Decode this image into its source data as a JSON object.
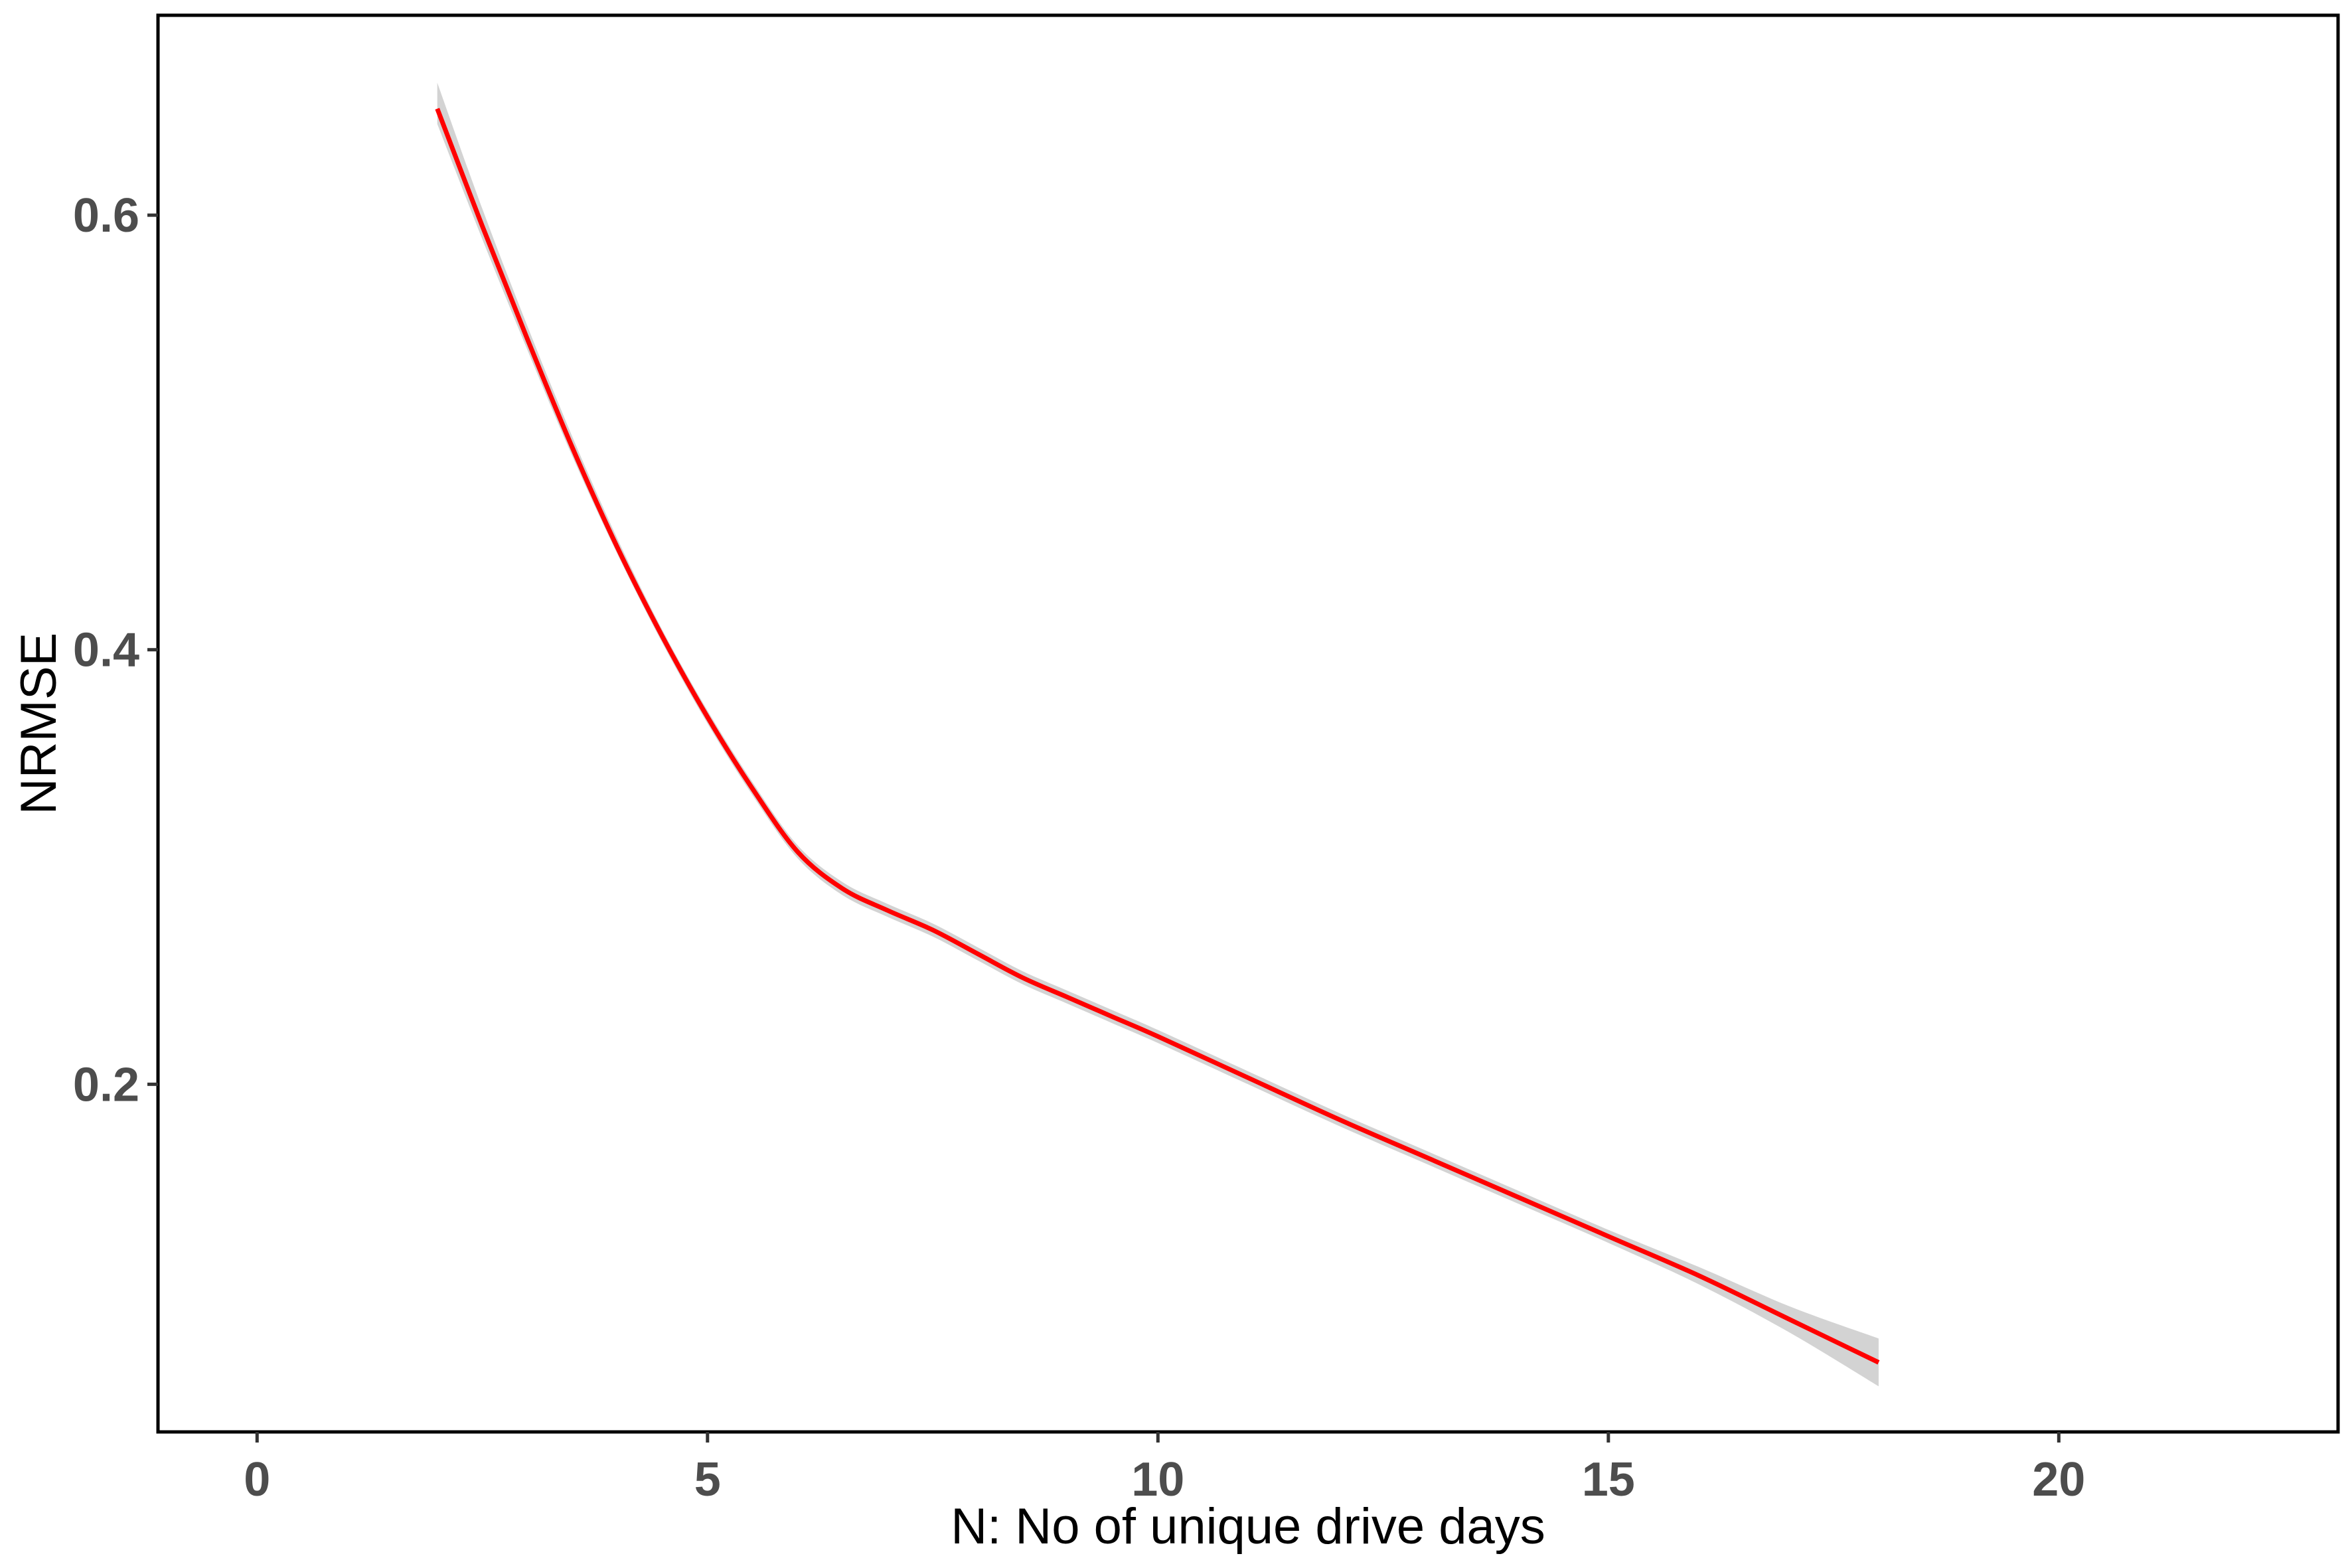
{
  "chart_data": {
    "type": "line",
    "title": "",
    "xlabel": "N: No of unique drive days",
    "ylabel": "NRMSE",
    "xlim": [
      -1.1,
      23.1
    ],
    "ylim": [
      0.04,
      0.692
    ],
    "xticks": [
      0,
      5,
      10,
      15,
      20
    ],
    "xtick_labels": [
      "0",
      "5",
      "10",
      "15",
      "20"
    ],
    "yticks": [
      0.2,
      0.4,
      0.6
    ],
    "ytick_labels": [
      "0.2",
      "0.4",
      "0.6"
    ],
    "grid": false,
    "legend": "none",
    "series": [
      {
        "color": "#ff0000",
        "band_color": "#d3d3d3",
        "x": [
          2,
          2.5,
          3,
          3.5,
          4,
          4.5,
          5,
          5.5,
          6,
          6.5,
          7,
          7.5,
          8,
          8.5,
          9,
          9.5,
          10,
          11,
          12,
          13,
          14,
          15,
          16,
          17,
          18
        ],
        "y": [
          0.649,
          0.595,
          0.543,
          0.493,
          0.447,
          0.406,
          0.369,
          0.336,
          0.307,
          0.29,
          0.28,
          0.271,
          0.26,
          0.249,
          0.24,
          0.231,
          0.222,
          0.203,
          0.184,
          0.166,
          0.148,
          0.13,
          0.112,
          0.092,
          0.072
        ],
        "y_lower": [
          0.642,
          0.589,
          0.538,
          0.489,
          0.444,
          0.403,
          0.366,
          0.333,
          0.304,
          0.287,
          0.277,
          0.268,
          0.257,
          0.246,
          0.237,
          0.228,
          0.219,
          0.2,
          0.181,
          0.163,
          0.145,
          0.127,
          0.108,
          0.086,
          0.061
        ],
        "y_upper": [
          0.661,
          0.603,
          0.549,
          0.498,
          0.451,
          0.409,
          0.372,
          0.339,
          0.31,
          0.293,
          0.283,
          0.274,
          0.263,
          0.252,
          0.243,
          0.234,
          0.225,
          0.206,
          0.187,
          0.169,
          0.151,
          0.133,
          0.116,
          0.098,
          0.083
        ]
      }
    ]
  }
}
